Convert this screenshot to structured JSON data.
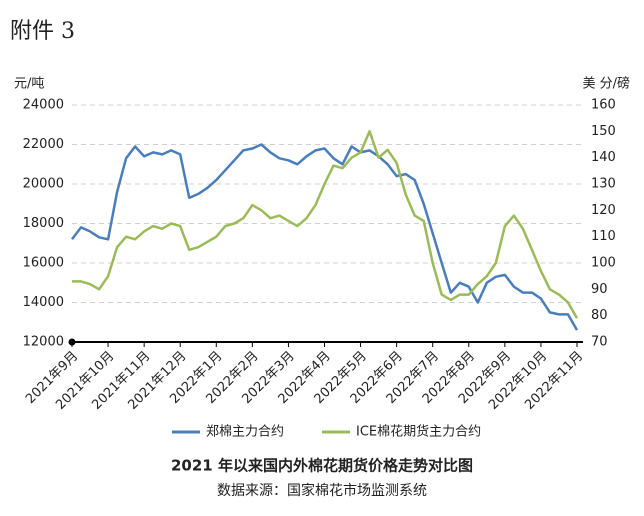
{
  "header": "附件 3",
  "chart_data": {
    "type": "line",
    "title": "2021 年以来国内外棉花期货价格走势对比图",
    "subtitle": "数据来源：国家棉花市场监测系统",
    "y_label": "元/吨",
    "y2_label": "美 分/磅",
    "categories": [
      "2021年9月",
      null,
      null,
      null,
      "2021年10月",
      null,
      null,
      null,
      "2021年11月",
      null,
      null,
      null,
      "2021年12月",
      null,
      null,
      null,
      "2022年1月",
      null,
      null,
      null,
      "2022年2月",
      null,
      null,
      null,
      "2022年3月",
      null,
      null,
      null,
      "2022年4月",
      null,
      null,
      null,
      "2022年5月",
      null,
      null,
      null,
      "2022年6月",
      null,
      null,
      null,
      "2022年7月",
      null,
      null,
      null,
      "2022年8月",
      null,
      null,
      null,
      "2022年9月",
      null,
      null,
      null,
      "2022年10月",
      null,
      null,
      null,
      "2022年11月"
    ],
    "series": [
      {
        "name": "郑棉主力合约",
        "color": "#4a7ebb",
        "values": [
          17200,
          17800,
          17600,
          17300,
          17200,
          19600,
          21300,
          21900,
          21400,
          21600,
          21500,
          21700,
          21500,
          19300,
          19500,
          19800,
          20200,
          20700,
          21200,
          21700,
          21800,
          22000,
          21600,
          21300,
          21200,
          21000,
          21400,
          21700,
          21800,
          21300,
          21000,
          21900,
          21600,
          21700,
          21400,
          21000,
          20400,
          20500,
          20200,
          19000,
          17500,
          16000,
          14500,
          15000,
          14800,
          14000,
          15000,
          15300,
          15400,
          14800,
          14500,
          14500,
          14200,
          13500,
          13400,
          13400,
          12600
        ]
      },
      {
        "name": "ICE棉花期货主力合约",
        "color": "#9bbb59",
        "axis": "y2",
        "values": [
          93,
          93,
          92,
          90,
          95,
          106,
          110,
          109,
          112,
          114,
          113,
          115,
          114,
          105,
          106,
          108,
          110,
          114,
          115,
          117,
          122,
          120,
          117,
          118,
          116,
          114,
          117,
          122,
          130,
          137,
          136,
          140,
          142,
          150,
          140,
          143,
          138,
          126,
          118,
          116,
          100,
          88,
          86,
          88,
          88,
          92,
          95,
          100,
          114,
          118,
          113,
          105,
          97,
          90,
          88,
          85,
          79
        ]
      }
    ],
    "ylim": [
      12000,
      24000
    ],
    "yticks": [
      12000,
      14000,
      16000,
      18000,
      20000,
      22000,
      24000
    ],
    "y2lim": [
      70,
      160
    ],
    "y2ticks": [
      70,
      80,
      90,
      100,
      110,
      120,
      130,
      140,
      150,
      160
    ],
    "grid": true
  }
}
